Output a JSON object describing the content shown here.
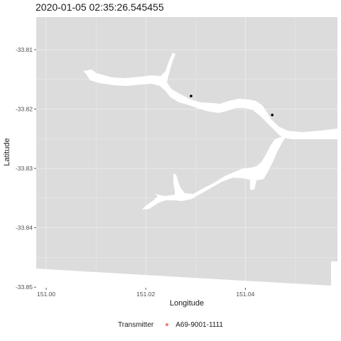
{
  "title": "2020-01-05 02:35:26.545455",
  "map": {
    "type": "scatter",
    "xlabel": "Longitude",
    "ylabel": "Latitude",
    "xlim": [
      150.998,
      151.0585
    ],
    "ylim": [
      -33.8501,
      -33.8045
    ],
    "x_ticks": [
      151.0,
      151.02,
      151.04
    ],
    "x_tick_labels": [
      "151.00",
      "151.02",
      "151.04"
    ],
    "y_ticks": [
      -33.81,
      -33.82,
      -33.83,
      -33.84,
      -33.85
    ],
    "y_tick_labels": [
      "-33.81",
      "-33.82",
      "-33.83",
      "-33.84",
      "-33.85"
    ],
    "land_color": "#dcdcdd",
    "water_color": "#ffffff",
    "grid": true,
    "points": [
      {
        "lon": 151.0291,
        "lat": -33.8178,
        "color": "#000000"
      },
      {
        "lon": 151.0454,
        "lat": -33.821,
        "color": "#000000"
      }
    ]
  },
  "legend": {
    "title": "Transmitter",
    "position": "bottom",
    "items": [
      {
        "label": "A69-9001-1111",
        "color": "#f8766d"
      }
    ]
  }
}
